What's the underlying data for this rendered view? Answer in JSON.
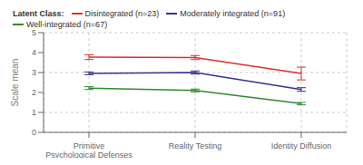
{
  "chart_data": {
    "type": "line",
    "title": "Latent Class:",
    "ylabel": "Scale mean",
    "categories": [
      "Primitive Psychological Defenses",
      "Reality Testing",
      "Identity Diffusion"
    ],
    "series": [
      {
        "name": "Disintegrated (n=23)",
        "color": "#e0302a",
        "values": [
          3.77,
          3.75,
          2.95
        ],
        "errors": [
          0.12,
          0.1,
          0.32
        ]
      },
      {
        "name": "Moderately integrated (n=91)",
        "color": "#3c2f8f",
        "values": [
          2.96,
          3.0,
          2.15
        ],
        "errors": [
          0.07,
          0.08,
          0.09
        ]
      },
      {
        "name": "Well-integrated (n=67)",
        "color": "#2e8b2e",
        "values": [
          2.22,
          2.1,
          1.44
        ],
        "errors": [
          0.07,
          0.07,
          0.06
        ]
      }
    ],
    "ylim": [
      0,
      5
    ],
    "yticks": [
      0,
      1,
      2,
      3,
      4,
      5
    ],
    "grid": true,
    "legend": "top"
  }
}
